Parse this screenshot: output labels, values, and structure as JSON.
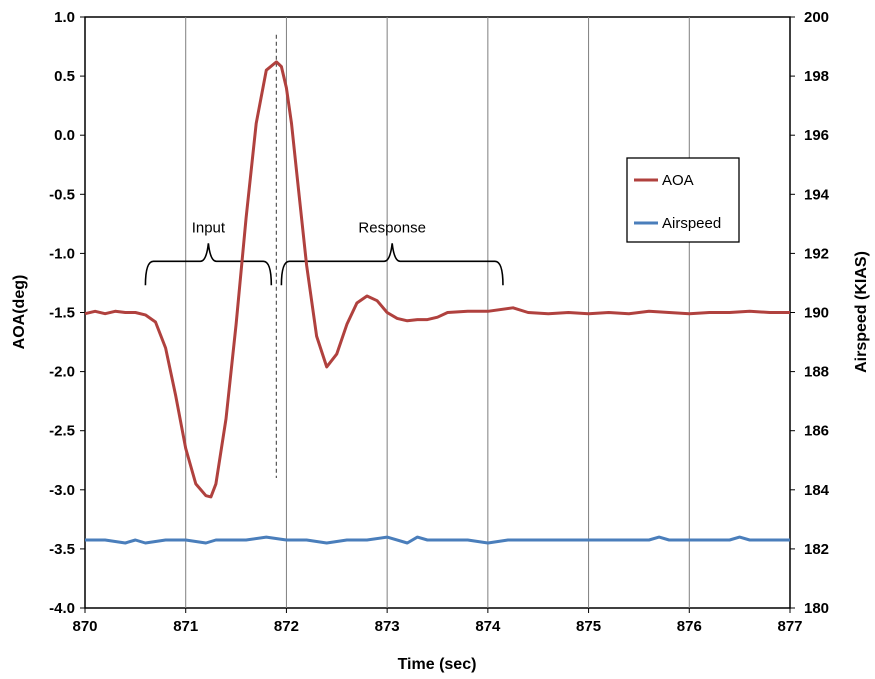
{
  "chart_data": {
    "type": "line",
    "xlabel": "Time (sec)",
    "ylabel_left": "AOA(deg)",
    "ylabel_right": "Airspeed (KIAS)",
    "xlim": [
      870,
      877
    ],
    "ylim_left": [
      -4.0,
      1.0
    ],
    "ylim_right": [
      180,
      200
    ],
    "x_ticks": [
      "870",
      "871",
      "872",
      "873",
      "874",
      "875",
      "876",
      "877"
    ],
    "y_left_ticks": [
      "1.0",
      "0.5",
      "0.0",
      "-0.5",
      "-1.0",
      "-1.5",
      "-2.0",
      "-2.5",
      "-3.0",
      "-3.5",
      "-4.0"
    ],
    "y_right_ticks": [
      "200",
      "198",
      "196",
      "194",
      "192",
      "190",
      "188",
      "186",
      "184",
      "182",
      "180"
    ],
    "grid": "vertical",
    "legend_position": "right",
    "series": [
      {
        "name": "AOA",
        "axis": "left",
        "color": "#b0413e",
        "x": [
          870.0,
          870.1,
          870.2,
          870.3,
          870.4,
          870.5,
          870.6,
          870.7,
          870.8,
          870.9,
          871.0,
          871.1,
          871.2,
          871.25,
          871.3,
          871.4,
          871.5,
          871.6,
          871.7,
          871.8,
          871.9,
          871.95,
          872.0,
          872.05,
          872.1,
          872.2,
          872.3,
          872.4,
          872.5,
          872.6,
          872.7,
          872.8,
          872.9,
          873.0,
          873.1,
          873.2,
          873.3,
          873.4,
          873.5,
          873.6,
          873.8,
          874.0,
          874.25,
          874.4,
          874.6,
          874.8,
          875.0,
          875.2,
          875.4,
          875.6,
          875.8,
          876.0,
          876.2,
          876.4,
          876.6,
          876.8,
          877.0
        ],
        "y": [
          -1.51,
          -1.49,
          -1.51,
          -1.49,
          -1.5,
          -1.5,
          -1.52,
          -1.58,
          -1.8,
          -2.2,
          -2.65,
          -2.95,
          -3.05,
          -3.06,
          -2.95,
          -2.4,
          -1.6,
          -0.7,
          0.1,
          0.55,
          0.62,
          0.58,
          0.4,
          0.1,
          -0.3,
          -1.1,
          -1.7,
          -1.96,
          -1.85,
          -1.6,
          -1.42,
          -1.36,
          -1.4,
          -1.5,
          -1.55,
          -1.57,
          -1.56,
          -1.56,
          -1.54,
          -1.5,
          -1.49,
          -1.49,
          -1.46,
          -1.5,
          -1.51,
          -1.5,
          -1.51,
          -1.5,
          -1.51,
          -1.49,
          -1.5,
          -1.51,
          -1.5,
          -1.5,
          -1.49,
          -1.5,
          -1.5
        ]
      },
      {
        "name": "Airspeed",
        "axis": "right",
        "color": "#4a7ebb",
        "x": [
          870.0,
          870.2,
          870.4,
          870.5,
          870.6,
          870.8,
          871.0,
          871.2,
          871.3,
          871.4,
          871.6,
          871.8,
          872.0,
          872.2,
          872.4,
          872.6,
          872.8,
          873.0,
          873.2,
          873.3,
          873.4,
          873.6,
          873.8,
          874.0,
          874.2,
          874.4,
          874.6,
          874.8,
          875.0,
          875.2,
          875.4,
          875.6,
          875.7,
          875.8,
          876.0,
          876.2,
          876.4,
          876.5,
          876.6,
          876.8,
          877.0
        ],
        "y": [
          182.3,
          182.3,
          182.2,
          182.3,
          182.2,
          182.3,
          182.3,
          182.2,
          182.3,
          182.3,
          182.3,
          182.4,
          182.3,
          182.3,
          182.2,
          182.3,
          182.3,
          182.4,
          182.2,
          182.4,
          182.3,
          182.3,
          182.3,
          182.2,
          182.3,
          182.3,
          182.3,
          182.3,
          182.3,
          182.3,
          182.3,
          182.3,
          182.4,
          182.3,
          182.3,
          182.3,
          182.3,
          182.4,
          182.3,
          182.3,
          182.3
        ]
      }
    ],
    "annotations": [
      {
        "label": "Input",
        "x_from": 870.6,
        "x_to": 871.85,
        "y": -1.05
      },
      {
        "label": "Response",
        "x_from": 871.95,
        "x_to": 874.15,
        "y": -1.05
      }
    ],
    "marker_line": {
      "x": 871.9,
      "y_from": 0.85,
      "y_to": -2.9
    }
  }
}
